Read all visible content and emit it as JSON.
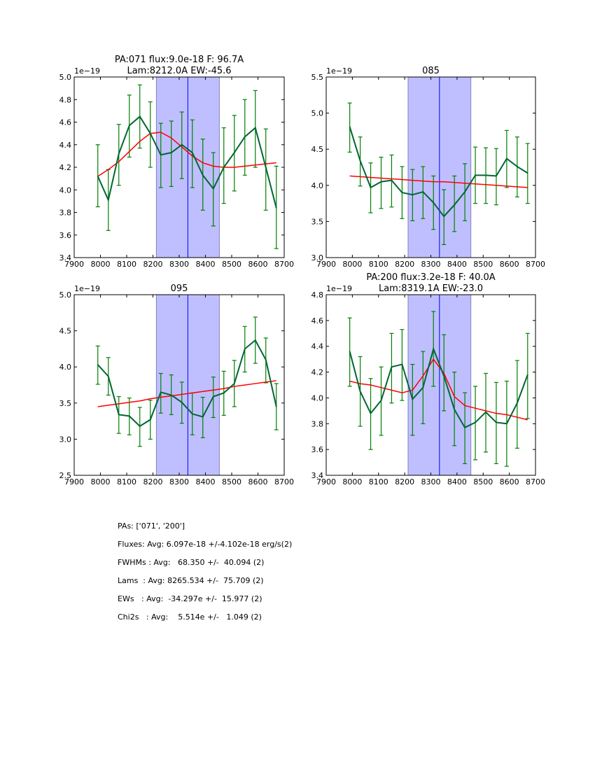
{
  "chart_data": [
    {
      "type": "line",
      "title": "PA:071 flux:9.0e-18 F: 96.7A\nLam:8212.0A EW:-45.6",
      "title_lines": [
        "PA:071 flux:9.0e-18 F: 96.7A",
        "Lam:8212.0A EW:-45.6"
      ],
      "xlabel": "",
      "ylabel": "",
      "y_offset_label": "1e−19",
      "xlim": [
        7900,
        8700
      ],
      "ylim": [
        3.4,
        5.0
      ],
      "xticks": [
        7900,
        8000,
        8100,
        8200,
        8300,
        8400,
        8500,
        8600,
        8700
      ],
      "yticks": [
        "3.4",
        "3.6",
        "3.8",
        "4.0",
        "4.2",
        "4.4",
        "4.6",
        "4.8",
        "5.0"
      ],
      "shaded_region": [
        8213,
        8453
      ],
      "center_line": 8333,
      "x": [
        7990,
        8030,
        8070,
        8110,
        8150,
        8190,
        8230,
        8270,
        8310,
        8350,
        8390,
        8430,
        8470,
        8510,
        8550,
        8590,
        8630,
        8670
      ],
      "series": [
        {
          "name": "data",
          "color": "#006633",
          "values": [
            4.12,
            3.91,
            4.32,
            4.57,
            4.65,
            4.5,
            4.31,
            4.33,
            4.4,
            4.33,
            4.13,
            4.01,
            4.2,
            4.33,
            4.47,
            4.55,
            4.2,
            3.84
          ],
          "err_low": [
            3.85,
            3.64,
            4.04,
            4.29,
            4.37,
            4.2,
            4.02,
            4.03,
            4.1,
            4.02,
            3.82,
            3.68,
            3.88,
            3.99,
            4.13,
            4.2,
            3.82,
            3.48
          ],
          "err_high": [
            4.4,
            4.18,
            4.58,
            4.84,
            4.93,
            4.78,
            4.59,
            4.61,
            4.69,
            4.62,
            4.45,
            4.33,
            4.55,
            4.66,
            4.8,
            4.88,
            4.54,
            4.21
          ]
        },
        {
          "name": "model",
          "color": "#ff0000",
          "values": [
            4.12,
            4.18,
            4.25,
            4.34,
            4.43,
            4.5,
            4.51,
            4.46,
            4.38,
            4.3,
            4.24,
            4.21,
            4.2,
            4.2,
            4.21,
            4.22,
            4.23,
            4.24
          ]
        }
      ]
    },
    {
      "type": "line",
      "title": "085",
      "title_lines": [
        "085"
      ],
      "xlabel": "",
      "ylabel": "",
      "y_offset_label": "1e−19",
      "xlim": [
        7900,
        8700
      ],
      "ylim": [
        3.0,
        5.5
      ],
      "xticks": [
        7900,
        8000,
        8100,
        8200,
        8300,
        8400,
        8500,
        8600,
        8700
      ],
      "yticks": [
        "3.0",
        "3.5",
        "4.0",
        "4.5",
        "5.0",
        "5.5"
      ],
      "shaded_region": [
        8213,
        8453
      ],
      "center_line": 8333,
      "x": [
        7990,
        8030,
        8070,
        8110,
        8150,
        8190,
        8230,
        8270,
        8310,
        8350,
        8390,
        8430,
        8470,
        8510,
        8550,
        8590,
        8630,
        8670
      ],
      "series": [
        {
          "name": "data",
          "color": "#006633",
          "values": [
            4.81,
            4.34,
            3.97,
            4.05,
            4.07,
            3.9,
            3.87,
            3.91,
            3.76,
            3.57,
            3.73,
            3.91,
            4.14,
            4.14,
            4.13,
            4.37,
            4.26,
            4.17
          ],
          "err_low": [
            4.46,
            3.99,
            3.62,
            3.68,
            3.7,
            3.54,
            3.51,
            3.54,
            3.39,
            3.18,
            3.36,
            3.51,
            3.75,
            3.75,
            3.73,
            3.97,
            3.84,
            3.75
          ],
          "err_high": [
            5.14,
            4.67,
            4.31,
            4.39,
            4.42,
            4.26,
            4.22,
            4.26,
            4.13,
            3.94,
            4.13,
            4.3,
            4.53,
            4.52,
            4.51,
            4.76,
            4.67,
            4.58
          ]
        },
        {
          "name": "model",
          "color": "#ff0000",
          "values": [
            4.13,
            4.12,
            4.11,
            4.1,
            4.09,
            4.08,
            4.07,
            4.06,
            4.05,
            4.05,
            4.04,
            4.03,
            4.02,
            4.01,
            4.0,
            3.99,
            3.98,
            3.97
          ]
        }
      ]
    },
    {
      "type": "line",
      "title": "095",
      "title_lines": [
        "095"
      ],
      "xlabel": "",
      "ylabel": "",
      "y_offset_label": "1e−19",
      "xlim": [
        7900,
        8700
      ],
      "ylim": [
        2.5,
        5.0
      ],
      "xticks": [
        7900,
        8000,
        8100,
        8200,
        8300,
        8400,
        8500,
        8600,
        8700
      ],
      "yticks": [
        "2.5",
        "3.0",
        "3.5",
        "4.0",
        "4.5",
        "5.0"
      ],
      "shaded_region": [
        8213,
        8453
      ],
      "center_line": 8333,
      "x": [
        7990,
        8030,
        8070,
        8110,
        8150,
        8190,
        8230,
        8270,
        8310,
        8350,
        8390,
        8430,
        8470,
        8510,
        8550,
        8590,
        8630,
        8670
      ],
      "series": [
        {
          "name": "data",
          "color": "#006633",
          "values": [
            4.03,
            3.87,
            3.34,
            3.32,
            3.18,
            3.27,
            3.65,
            3.61,
            3.51,
            3.35,
            3.31,
            3.59,
            3.64,
            3.77,
            4.25,
            4.37,
            4.1,
            3.45
          ],
          "err_low": [
            3.76,
            3.61,
            3.08,
            3.06,
            2.9,
            3.0,
            3.36,
            3.34,
            3.22,
            3.06,
            3.02,
            3.3,
            3.33,
            3.45,
            3.93,
            4.05,
            3.78,
            3.13
          ],
          "err_high": [
            4.29,
            4.13,
            3.59,
            3.57,
            3.44,
            3.54,
            3.91,
            3.89,
            3.79,
            3.64,
            3.58,
            3.86,
            3.94,
            4.09,
            4.56,
            4.69,
            4.4,
            3.77
          ]
        },
        {
          "name": "model",
          "color": "#ff0000",
          "values": [
            3.45,
            3.47,
            3.49,
            3.51,
            3.53,
            3.56,
            3.58,
            3.6,
            3.62,
            3.64,
            3.66,
            3.68,
            3.7,
            3.73,
            3.75,
            3.77,
            3.79,
            3.81
          ]
        }
      ]
    },
    {
      "type": "line",
      "title": "PA:200 flux:3.2e-18 F: 40.0A\nLam:8319.1A EW:-23.0",
      "title_lines": [
        "PA:200 flux:3.2e-18 F: 40.0A",
        "Lam:8319.1A EW:-23.0"
      ],
      "xlabel": "",
      "ylabel": "",
      "y_offset_label": "1e−19",
      "xlim": [
        7900,
        8700
      ],
      "ylim": [
        3.4,
        4.8
      ],
      "xticks": [
        7900,
        8000,
        8100,
        8200,
        8300,
        8400,
        8500,
        8600,
        8700
      ],
      "yticks": [
        "3.4",
        "3.6",
        "3.8",
        "4.0",
        "4.2",
        "4.4",
        "4.6",
        "4.8"
      ],
      "shaded_region": [
        8213,
        8453
      ],
      "center_line": 8333,
      "x": [
        7990,
        8030,
        8070,
        8110,
        8150,
        8190,
        8230,
        8270,
        8310,
        8350,
        8390,
        8430,
        8470,
        8510,
        8550,
        8590,
        8630,
        8670
      ],
      "series": [
        {
          "name": "data",
          "color": "#006633",
          "values": [
            4.36,
            4.05,
            3.88,
            3.98,
            4.24,
            4.26,
            3.99,
            4.08,
            4.38,
            4.17,
            3.91,
            3.77,
            3.81,
            3.89,
            3.81,
            3.8,
            3.96,
            4.18
          ],
          "err_low": [
            4.09,
            3.78,
            3.6,
            3.71,
            3.96,
            3.98,
            3.71,
            3.8,
            4.09,
            3.9,
            3.63,
            3.49,
            3.52,
            3.58,
            3.49,
            3.47,
            3.61,
            3.84
          ],
          "err_high": [
            4.62,
            4.32,
            4.15,
            4.24,
            4.5,
            4.53,
            4.26,
            4.36,
            4.67,
            4.49,
            4.2,
            4.04,
            4.09,
            4.19,
            4.12,
            4.13,
            4.29,
            4.5
          ]
        },
        {
          "name": "model",
          "color": "#ff0000",
          "values": [
            4.13,
            4.11,
            4.1,
            4.08,
            4.06,
            4.04,
            4.06,
            4.17,
            4.3,
            4.19,
            4.01,
            3.94,
            3.92,
            3.9,
            3.88,
            3.87,
            3.85,
            3.83
          ]
        }
      ]
    }
  ],
  "styles": {
    "errorbar_color": "#008000",
    "shade_color": "#bfbfff",
    "shade_edge_color": "#8080c0",
    "center_line_color": "#0000ff"
  },
  "stats": {
    "pas": "PAs: ['071', '200']",
    "fluxes": "Fluxes: Avg: 6.097e-18 +/-4.102e-18 erg/s(2)",
    "fwhms": "FWHMs : Avg:   68.350 +/-  40.094 (2)",
    "lams": "Lams  : Avg: 8265.534 +/-  75.709 (2)",
    "ews": "EWs   : Avg:  -34.297e +/-  15.977 (2)",
    "chi2s": "Chi2s   : Avg:    5.514e +/-   1.049 (2)"
  }
}
